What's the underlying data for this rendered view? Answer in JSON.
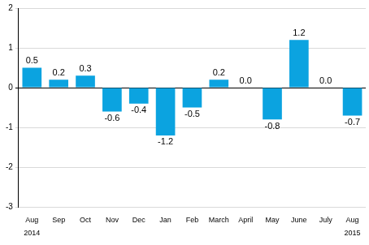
{
  "chart_data": {
    "type": "bar",
    "categories": [
      "Aug",
      "Sep",
      "Oct",
      "Nov",
      "Dec",
      "Jan",
      "Feb",
      "March",
      "April",
      "May",
      "June",
      "July",
      "Aug"
    ],
    "values": [
      0.5,
      0.2,
      0.3,
      -0.6,
      -0.4,
      -1.2,
      -0.5,
      0.2,
      0.0,
      -0.8,
      1.2,
      0.0,
      -0.7
    ],
    "value_labels": [
      "0.5",
      "0.2",
      "0.3",
      "-0.6",
      "-0.4",
      "-1.2",
      "-0.5",
      "0.2",
      "0.0",
      "-0.8",
      "1.2",
      "0.0",
      "-0.7"
    ],
    "annotations": [
      {
        "text": "2014",
        "index": 0
      },
      {
        "text": "2015",
        "index": 12
      }
    ],
    "color": "#0ba3e0",
    "ylim": [
      -3,
      2
    ],
    "yticks": [
      -3,
      -2,
      -1,
      0,
      1,
      2
    ],
    "grid": true,
    "data_labels": true
  }
}
